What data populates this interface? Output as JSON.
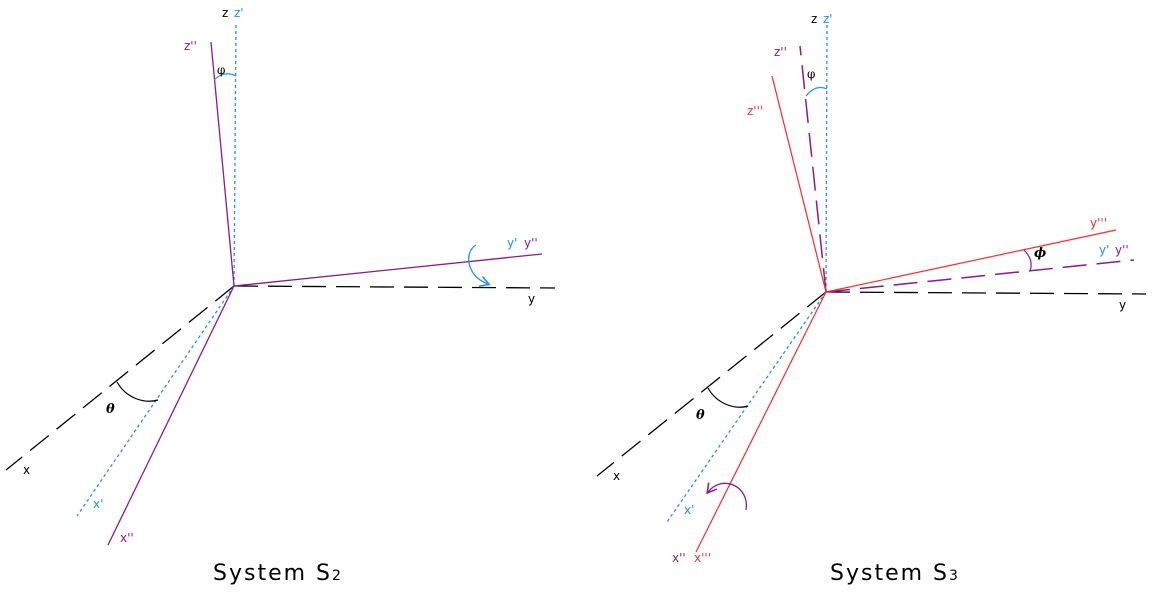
{
  "colors": {
    "original_axes": "#000000",
    "primed_axes": "#1e90ff",
    "double_primed_axes": "#8b1a8b",
    "triple_primed_axes": "#ff2a2a"
  },
  "left_panel": {
    "caption_main": "System S",
    "caption_sub": "2",
    "labels": {
      "z": "z",
      "z_prime": "z'",
      "z_double": "z''",
      "phi": "φ",
      "y_prime": "y'",
      "y_double": "y''",
      "y": "y",
      "theta": "θ",
      "x": "x",
      "x_prime": "x'",
      "x_double": "x''"
    }
  },
  "right_panel": {
    "caption_main": "System S",
    "caption_sub": "3",
    "labels": {
      "z": "z",
      "z_prime": "z'",
      "z_double": "z''",
      "z_triple": "z'''",
      "phi": "φ",
      "y_triple": "y'''",
      "phi_bold": "ϕ",
      "y_prime": "y'",
      "y_double": "y''",
      "y": "y",
      "theta": "θ",
      "x": "x",
      "x_prime": "x'",
      "x_double": "x''",
      "x_triple": "x'''"
    }
  }
}
